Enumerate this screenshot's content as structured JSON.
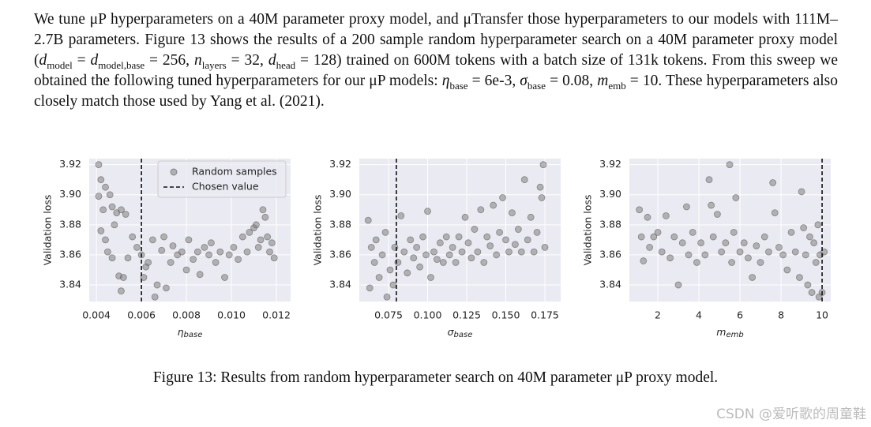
{
  "paragraph": [
    "We tune μP hyperparameters on a 40M parameter proxy model, and μTransfer those hyperparameters to our models with 111M–2.7B parameters. Figure 13 shows the results of a 200 sample random hyperparameter search on a 40M parameter proxy model (",
    [
      "d",
      "model"
    ],
    " = ",
    [
      "d",
      "model,base"
    ],
    " = 256, ",
    [
      "n",
      "layers"
    ],
    " = 32, ",
    [
      "d",
      "head"
    ],
    " = 128) trained on 600M tokens with a batch size of 131k tokens. From this sweep we obtained the following tuned hyperparameters for our μP models: ",
    [
      "η",
      "base"
    ],
    " = 6e-3, ",
    [
      "σ",
      "base"
    ],
    " = 0.08, ",
    [
      "m",
      "emb"
    ],
    " = 10. These hyperparameters also closely match those used by Yang et al. (2021)."
  ],
  "chart_data": [
    {
      "type": "scatter",
      "xlabel": "η",
      "xlabel_sub": "base",
      "ylabel": "Validation loss",
      "xlim": [
        0.00368,
        0.01263
      ],
      "xticks": [
        0.004,
        0.006,
        0.008,
        {
          "value": 0.01,
          "label": "0.010"
        },
        0.012
      ],
      "ylim": [
        3.829,
        3.924
      ],
      "yticks": [
        3.84,
        3.86,
        3.88,
        {
          "value": 3.9,
          "label": "3.90"
        },
        3.92
      ],
      "grid": true,
      "legend": "upper right",
      "series": [
        {
          "name": "Random samples",
          "color": "#808080",
          "x": [
            0.0041,
            0.0042,
            0.0041,
            0.0043,
            0.0044,
            0.0046,
            0.0047,
            0.0049,
            0.0051,
            0.0053,
            0.0042,
            0.0044,
            0.0045,
            0.0047,
            0.0048,
            0.005,
            0.0051,
            0.0052,
            0.0054,
            0.0056,
            0.0058,
            0.006,
            0.0061,
            0.0062,
            0.0063,
            0.0065,
            0.0066,
            0.0067,
            0.0069,
            0.007,
            0.0071,
            0.0073,
            0.0074,
            0.0076,
            0.0078,
            0.008,
            0.0081,
            0.0083,
            0.0085,
            0.0086,
            0.0088,
            0.009,
            0.0091,
            0.0093,
            0.0095,
            0.0097,
            0.0099,
            0.0101,
            0.0103,
            0.0105,
            0.0107,
            0.0108,
            0.011,
            0.0111,
            0.0112,
            0.0113,
            0.0114,
            0.0115,
            0.0116,
            0.0118,
            0.0119,
            0.0117
          ],
          "values": [
            3.92,
            3.91,
            3.899,
            3.89,
            3.905,
            3.9,
            3.892,
            3.888,
            3.89,
            3.887,
            3.876,
            3.87,
            3.862,
            3.858,
            3.88,
            3.846,
            3.836,
            3.845,
            3.858,
            3.872,
            3.865,
            3.86,
            3.845,
            3.852,
            3.855,
            3.87,
            3.832,
            3.84,
            3.863,
            3.872,
            3.838,
            3.855,
            3.866,
            3.86,
            3.862,
            3.85,
            3.87,
            3.857,
            3.862,
            3.847,
            3.865,
            3.86,
            3.868,
            3.855,
            3.862,
            3.845,
            3.86,
            3.865,
            3.857,
            3.872,
            3.862,
            3.875,
            3.878,
            3.88,
            3.865,
            3.87,
            3.89,
            3.885,
            3.872,
            3.868,
            3.858,
            3.862
          ]
        }
      ],
      "vline": {
        "name": "Chosen value",
        "value": 0.006
      }
    },
    {
      "type": "scatter",
      "xlabel": "σ",
      "xlabel_sub": "base",
      "ylabel": "Validation loss",
      "xlim": [
        0.0563,
        0.1851
      ],
      "xticks": [
        0.075,
        {
          "value": 0.1,
          "label": "0.100"
        },
        0.125,
        {
          "value": 0.15,
          "label": "0.150"
        },
        0.175
      ],
      "ylim": [
        3.829,
        3.924
      ],
      "yticks": [
        3.84,
        3.86,
        3.88,
        {
          "value": 3.9,
          "label": "3.90"
        },
        3.92
      ],
      "grid": true,
      "series": [
        {
          "color": "#808080",
          "x": [
            0.062,
            0.064,
            0.063,
            0.066,
            0.067,
            0.069,
            0.071,
            0.073,
            0.074,
            0.076,
            0.078,
            0.079,
            0.081,
            0.083,
            0.085,
            0.087,
            0.089,
            0.091,
            0.093,
            0.095,
            0.097,
            0.099,
            0.1,
            0.102,
            0.104,
            0.106,
            0.108,
            0.11,
            0.112,
            0.114,
            0.116,
            0.118,
            0.12,
            0.122,
            0.124,
            0.126,
            0.128,
            0.13,
            0.132,
            0.134,
            0.136,
            0.138,
            0.14,
            0.142,
            0.144,
            0.146,
            0.148,
            0.15,
            0.152,
            0.154,
            0.156,
            0.158,
            0.16,
            0.162,
            0.164,
            0.166,
            0.168,
            0.17,
            0.172,
            0.174,
            0.173,
            0.175
          ],
          "values": [
            3.883,
            3.865,
            3.838,
            3.855,
            3.87,
            3.845,
            3.86,
            3.875,
            3.832,
            3.85,
            3.84,
            3.865,
            3.855,
            3.886,
            3.862,
            3.848,
            3.87,
            3.858,
            3.865,
            3.852,
            3.872,
            3.86,
            3.889,
            3.845,
            3.862,
            3.857,
            3.868,
            3.855,
            3.872,
            3.86,
            3.865,
            3.855,
            3.872,
            3.862,
            3.885,
            3.868,
            3.858,
            3.877,
            3.862,
            3.89,
            3.855,
            3.872,
            3.866,
            3.893,
            3.86,
            3.875,
            3.898,
            3.87,
            3.862,
            3.888,
            3.867,
            3.877,
            3.862,
            3.91,
            3.87,
            3.885,
            3.862,
            3.875,
            3.905,
            3.92,
            3.898,
            3.865
          ]
        }
      ],
      "vline": {
        "value": 0.08
      }
    },
    {
      "type": "scatter",
      "xlabel": "m",
      "xlabel_sub": "emb",
      "ylabel": "Validation loss",
      "xlim": [
        0.615,
        10.42
      ],
      "xticks": [
        2,
        4,
        6,
        8,
        10
      ],
      "ylim": [
        3.829,
        3.924
      ],
      "yticks": [
        3.84,
        3.86,
        3.88,
        {
          "value": 3.9,
          "label": "3.90"
        },
        3.92
      ],
      "grid": true,
      "series": [
        {
          "color": "#808080",
          "x": [
            1.1,
            1.2,
            1.3,
            1.5,
            1.6,
            1.8,
            2.0,
            2.2,
            2.4,
            2.6,
            2.8,
            3.0,
            3.2,
            3.4,
            3.5,
            3.7,
            3.9,
            4.1,
            4.3,
            4.5,
            4.6,
            4.7,
            4.9,
            5.1,
            5.3,
            5.5,
            5.6,
            5.7,
            5.8,
            6.0,
            6.2,
            6.4,
            6.6,
            6.8,
            7.0,
            7.2,
            7.4,
            7.6,
            7.7,
            7.9,
            8.1,
            8.3,
            8.5,
            8.7,
            8.9,
            9.0,
            9.1,
            9.2,
            9.3,
            9.4,
            9.5,
            9.6,
            9.7,
            9.8,
            9.9,
            10.0,
            10.1,
            9.85
          ],
          "values": [
            3.89,
            3.872,
            3.856,
            3.885,
            3.865,
            3.872,
            3.875,
            3.862,
            3.886,
            3.858,
            3.872,
            3.84,
            3.868,
            3.892,
            3.86,
            3.875,
            3.855,
            3.868,
            3.86,
            3.91,
            3.893,
            3.872,
            3.887,
            3.862,
            3.868,
            3.92,
            3.855,
            3.875,
            3.898,
            3.862,
            3.868,
            3.858,
            3.845,
            3.866,
            3.855,
            3.872,
            3.862,
            3.908,
            3.888,
            3.865,
            3.86,
            3.85,
            3.875,
            3.862,
            3.845,
            3.902,
            3.878,
            3.86,
            3.84,
            3.872,
            3.835,
            3.868,
            3.855,
            3.88,
            3.86,
            3.835,
            3.862,
            3.832
          ]
        }
      ],
      "vline": {
        "value": 10
      }
    }
  ],
  "caption": "Figure 13: Results from random hyperparameter search on 40M parameter μP proxy model.",
  "watermark": "CSDN @爱听歌的周童鞋"
}
